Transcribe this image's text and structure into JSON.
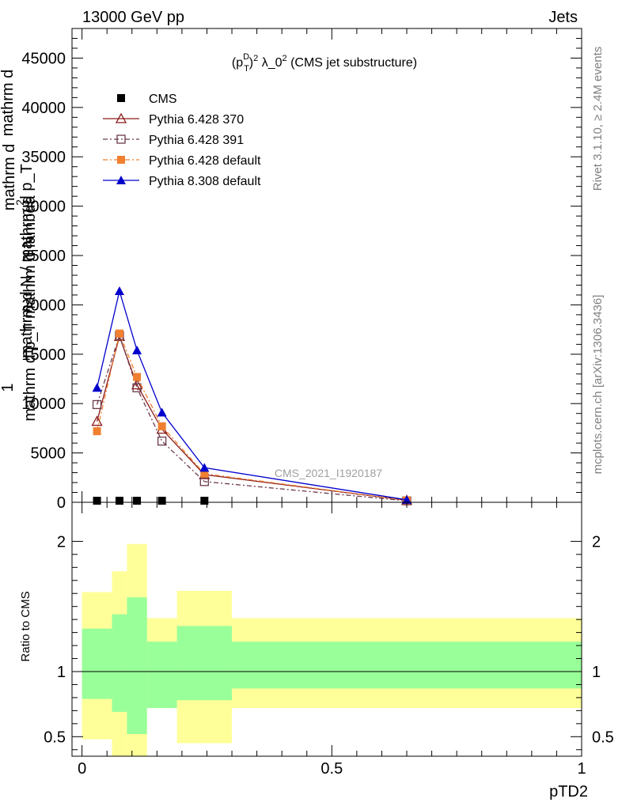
{
  "header": {
    "left": "13000 GeV pp",
    "right": "Jets"
  },
  "side_labels": {
    "rivet": "Rivet 3.1.10, ≥ 2.4M events",
    "mcplots": "mcplots.cern.ch [arXiv:1306.3436]"
  },
  "watermark": "CMS_2021_I1920187",
  "chart_data": [
    {
      "type": "line",
      "title": "(p_T^D)^2 λ_0^2 (CMS jet substructure)",
      "title_parts": {
        "pre": "(p",
        "sup1": "D",
        "sub1": "T",
        "mid": ")",
        "sup2": "2",
        "lambda": " λ_0",
        "sup3": "2",
        "post": " (CMS jet substructure)"
      },
      "ylabel": "1 / mathrm d N / mathrm d p_T mathrm d^2 N / mathrm d p_T mathrm d lambda",
      "ylabel_lines": [
        "1",
        "mathrm d N / mathrm d p_T",
        "mathrm d",
        "mathrm d p_T mathrm d lambda",
        "mathrm d",
        "2",
        "N"
      ],
      "xlim": [
        -0.02,
        1.0
      ],
      "ylim": [
        0,
        48000
      ],
      "yticks": [
        0,
        5000,
        10000,
        15000,
        20000,
        25000,
        30000,
        35000,
        40000,
        45000
      ],
      "yticklabels": [
        "0",
        "5000",
        "10000",
        "15000",
        "20000",
        "25000",
        "30000",
        "35000",
        "40000",
        "45000"
      ],
      "legend": [
        "CMS",
        "Pythia 6.428 370",
        "Pythia 6.428 391",
        "Pythia 6.428 default",
        "Pythia 8.308 default"
      ],
      "legend_position": "top-left",
      "series": [
        {
          "name": "CMS",
          "color": "#000000",
          "marker": "square-filled",
          "x": [
            0.03,
            0.075,
            0.11,
            0.16,
            0.245,
            0.65
          ],
          "y": [
            0,
            0,
            0,
            0,
            0,
            0
          ]
        },
        {
          "name": "Pythia 6.428 370",
          "color": "#8b1a1a",
          "marker": "triangle-open",
          "dash": "",
          "x": [
            0.03,
            0.075,
            0.11,
            0.16,
            0.245,
            0.65
          ],
          "y": [
            8200,
            16800,
            11900,
            7400,
            2800,
            200
          ]
        },
        {
          "name": "Pythia 6.428 391",
          "color": "#6b3a4a",
          "marker": "square-open",
          "dash": "6,3,2,3",
          "x": [
            0.03,
            0.075,
            0.11,
            0.16,
            0.245,
            0.65
          ],
          "y": [
            9900,
            16900,
            11600,
            6200,
            2100,
            150
          ]
        },
        {
          "name": "Pythia 6.428 default",
          "color": "#f08030",
          "marker": "square-filled",
          "dash": "6,3,2,3",
          "x": [
            0.03,
            0.075,
            0.11,
            0.16,
            0.245,
            0.65
          ],
          "y": [
            7200,
            17100,
            12700,
            7700,
            2900,
            200
          ]
        },
        {
          "name": "Pythia 8.308 default",
          "color": "#0000cc",
          "marker": "triangle-filled",
          "dash": "",
          "x": [
            0.03,
            0.075,
            0.11,
            0.16,
            0.245,
            0.65
          ],
          "y": [
            11600,
            21400,
            15400,
            9100,
            3500,
            250
          ]
        }
      ]
    },
    {
      "type": "area",
      "title": "",
      "xlabel": "pTD2",
      "ylabel": "Ratio to CMS",
      "xlim": [
        -0.02,
        1.0
      ],
      "ylim": [
        0.35,
        2.3
      ],
      "xticks": [
        0,
        0.5,
        1
      ],
      "xticklabels": [
        "0",
        "0.5",
        "1"
      ],
      "yticks": [
        0.5,
        1,
        2
      ],
      "yticklabels": [
        "0.5",
        "1",
        "2"
      ],
      "reference_line": 1,
      "bins": [
        {
          "x": [
            0.0,
            0.06
          ],
          "inner": [
            0.79,
            1.33
          ],
          "outer": [
            0.48,
            1.61
          ]
        },
        {
          "x": [
            0.06,
            0.09
          ],
          "inner": [
            0.69,
            1.44
          ],
          "outer": [
            0.35,
            1.77
          ]
        },
        {
          "x": [
            0.09,
            0.13
          ],
          "inner": [
            0.52,
            1.57
          ],
          "outer": [
            0.35,
            1.98
          ]
        },
        {
          "x": [
            0.13,
            0.19
          ],
          "inner": [
            0.72,
            1.23
          ],
          "outer": [
            0.72,
            1.41
          ]
        },
        {
          "x": [
            0.19,
            0.3
          ],
          "inner": [
            0.78,
            1.35
          ],
          "outer": [
            0.45,
            1.62
          ]
        },
        {
          "x": [
            0.3,
            1.0
          ],
          "inner": [
            0.87,
            1.23
          ],
          "outer": [
            0.72,
            1.41
          ]
        }
      ],
      "colors": {
        "inner": "#99ff99",
        "outer": "#ffff99"
      }
    }
  ]
}
